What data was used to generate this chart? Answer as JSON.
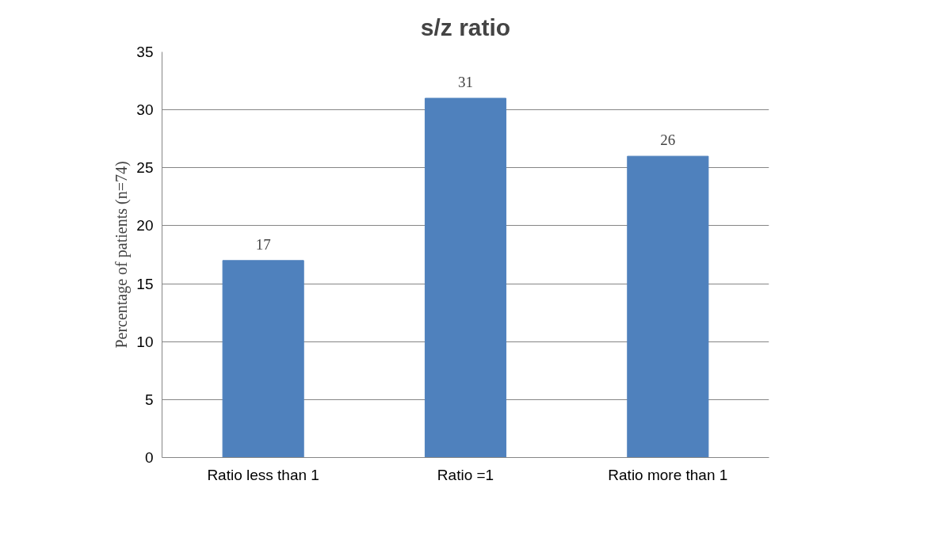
{
  "chart_data": {
    "type": "bar",
    "title": "s/z ratio",
    "ylabel": "Percentage of patients (n=74)",
    "categories": [
      "Ratio less than 1",
      "Ratio =1",
      "Ratio more than 1"
    ],
    "values": [
      17,
      31,
      26
    ],
    "color": "#4f81bd",
    "ylim": [
      0,
      35
    ],
    "yticks": [
      0,
      5,
      10,
      15,
      20,
      25,
      30,
      35
    ],
    "grid": "y",
    "data_labels": true
  }
}
